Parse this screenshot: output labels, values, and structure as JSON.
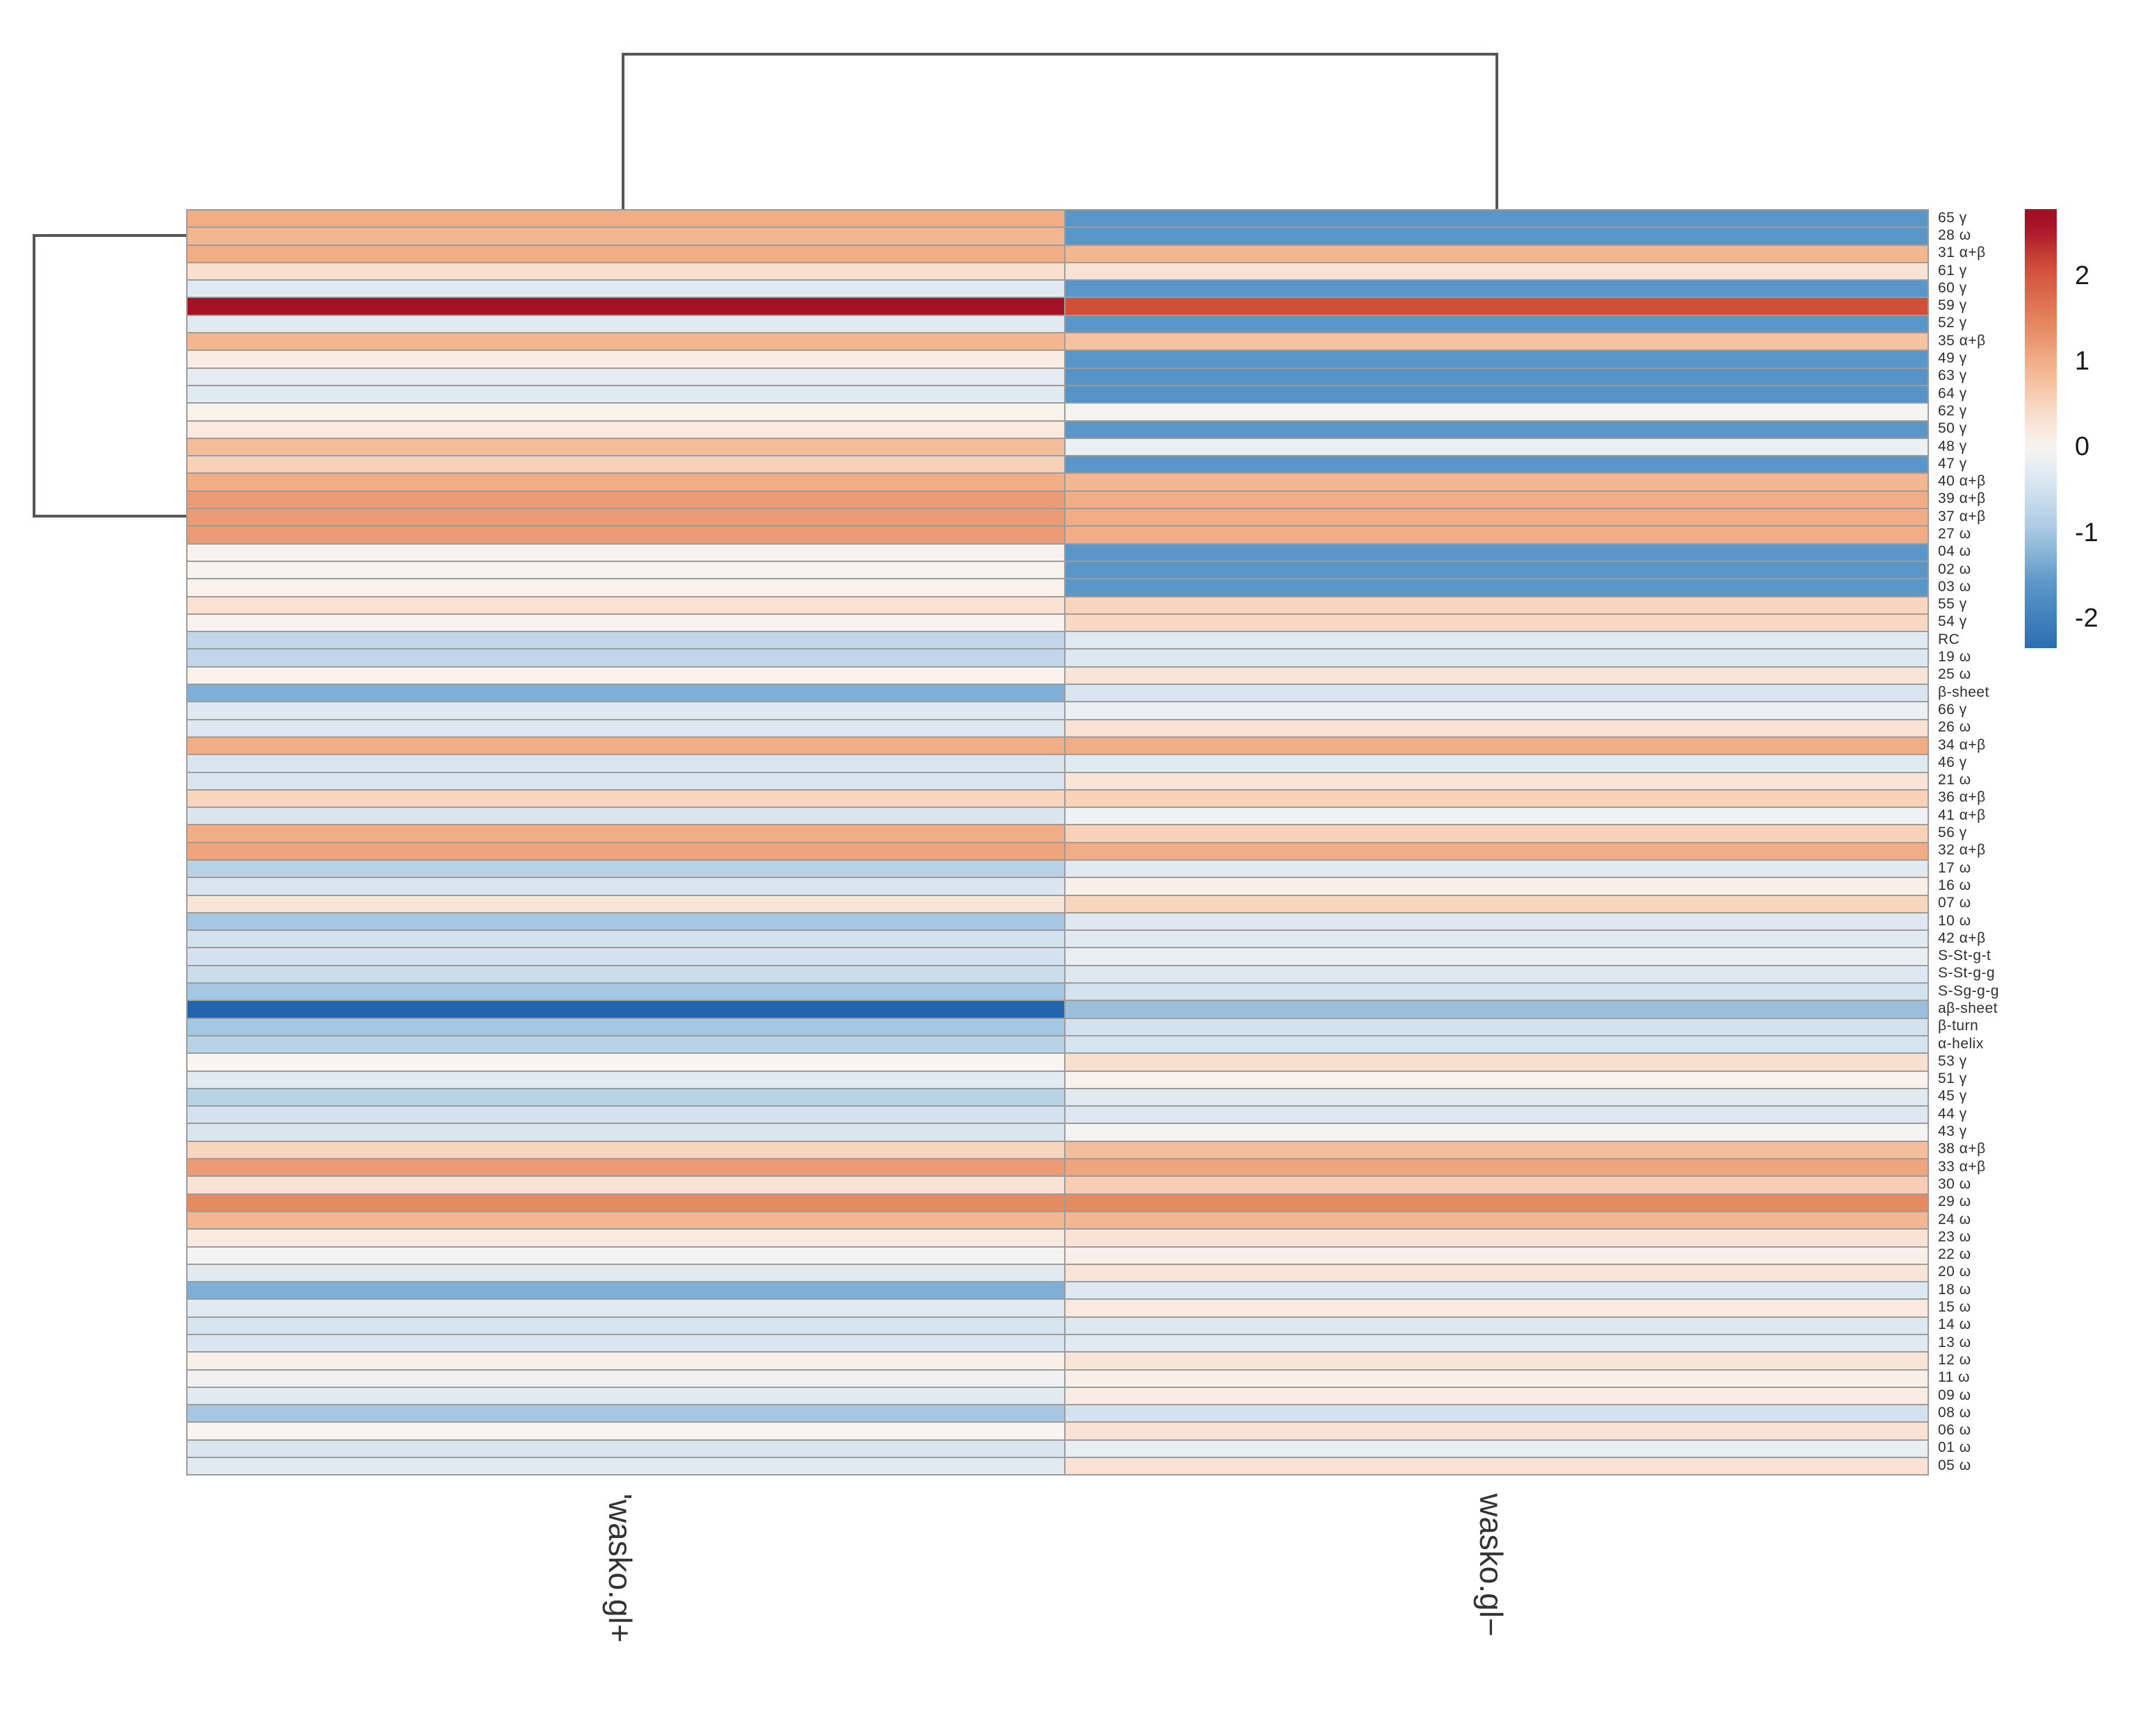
{
  "figure": {
    "background": "#ffffff",
    "grid_line_color": "#9c9c9c",
    "dendrogram_color": "#55565a"
  },
  "chart_data": {
    "type": "heatmap",
    "title": "",
    "columns": [
      "'wasko.gl+",
      "wasko.gl−"
    ],
    "rows": [
      "65 γ",
      "28 ω",
      "31 α+β",
      "61 γ",
      "60 γ",
      "59 γ",
      "52 γ",
      "35 α+β",
      "49 γ",
      "63 γ",
      "64 γ",
      "62 γ",
      "50 γ",
      "48 γ",
      "47 γ",
      "40 α+β",
      "39 α+β",
      "37 α+β",
      "27 ω",
      "04 ω",
      "02 ω",
      "03 ω",
      "55 γ",
      "54 γ",
      "RC",
      "19 ω",
      "25 ω",
      "β-sheet",
      "66 γ",
      "26 ω",
      "34 α+β",
      "46 γ",
      "21 ω",
      "36 α+β",
      "41 α+β",
      "56 γ",
      "32 α+β",
      "17 ω",
      "16 ω",
      "07 ω",
      "10 ω",
      "42 α+β",
      "S-St-g-t",
      "S-St-g-g",
      "S-Sg-g-g",
      "aβ-sheet",
      "β-turn",
      "α-helix",
      "53 γ",
      "51 γ",
      "45 γ",
      "44 γ",
      "43 γ",
      "38 α+β",
      "33 α+β",
      "30 ω",
      "29 ω",
      "24 ω",
      "23 ω",
      "22 ω",
      "20 ω",
      "18 ω",
      "15 ω",
      "14 ω",
      "13 ω",
      "12 ω",
      "11 ω",
      "09 ω",
      "08 ω",
      "06 ω",
      "01 ω",
      "05 ω"
    ],
    "values": [
      [
        1.0,
        -1.6
      ],
      [
        0.9,
        -1.6
      ],
      [
        1.0,
        0.9
      ],
      [
        0.35,
        0.3
      ],
      [
        -0.3,
        -1.6
      ],
      [
        2.6,
        2.1
      ],
      [
        -0.3,
        -1.6
      ],
      [
        0.9,
        0.75
      ],
      [
        0.15,
        -1.6
      ],
      [
        -0.25,
        -1.65
      ],
      [
        -0.3,
        -1.65
      ],
      [
        0.05,
        -0.05
      ],
      [
        0.2,
        -1.6
      ],
      [
        0.8,
        -0.15
      ],
      [
        0.55,
        -1.6
      ],
      [
        1.0,
        0.9
      ],
      [
        1.2,
        1.0
      ],
      [
        1.2,
        1.0
      ],
      [
        1.2,
        1.0
      ],
      [
        0.05,
        -1.6
      ],
      [
        0.05,
        -1.6
      ],
      [
        0.05,
        -1.6
      ],
      [
        0.3,
        0.5
      ],
      [
        0.05,
        0.45
      ],
      [
        -0.7,
        -0.3
      ],
      [
        -0.7,
        -0.35
      ],
      [
        0.05,
        0.25
      ],
      [
        -1.3,
        -0.4
      ],
      [
        -0.35,
        -0.15
      ],
      [
        -0.35,
        0.3
      ],
      [
        1.0,
        1.0
      ],
      [
        -0.4,
        -0.3
      ],
      [
        -0.4,
        0.25
      ],
      [
        0.5,
        0.55
      ],
      [
        -0.4,
        -0.1
      ],
      [
        1.0,
        0.55
      ],
      [
        1.1,
        1.0
      ],
      [
        -0.8,
        -0.3
      ],
      [
        -0.4,
        0.1
      ],
      [
        0.25,
        0.5
      ],
      [
        -1.0,
        -0.35
      ],
      [
        -0.5,
        -0.3
      ],
      [
        -0.5,
        -0.2
      ],
      [
        -0.6,
        -0.35
      ],
      [
        -1.0,
        -0.5
      ],
      [
        -2.5,
        -1.1
      ],
      [
        -1.0,
        -0.5
      ],
      [
        -0.8,
        -0.45
      ],
      [
        0.0,
        0.35
      ],
      [
        -0.3,
        0.05
      ],
      [
        -0.8,
        -0.3
      ],
      [
        -0.5,
        -0.35
      ],
      [
        -0.4,
        -0.05
      ],
      [
        0.5,
        0.8
      ],
      [
        1.2,
        1.1
      ],
      [
        0.3,
        0.6
      ],
      [
        1.4,
        1.4
      ],
      [
        0.9,
        0.9
      ],
      [
        0.2,
        0.3
      ],
      [
        -0.05,
        0.1
      ],
      [
        -0.3,
        0.25
      ],
      [
        -1.3,
        -0.35
      ],
      [
        -0.3,
        0.2
      ],
      [
        -0.45,
        -0.35
      ],
      [
        -0.4,
        -0.3
      ],
      [
        0.1,
        0.25
      ],
      [
        -0.1,
        0.1
      ],
      [
        -0.3,
        0.15
      ],
      [
        -1.0,
        -0.5
      ],
      [
        0.0,
        0.3
      ],
      [
        -0.4,
        -0.2
      ],
      [
        -0.3,
        0.3
      ]
    ],
    "color_scale": {
      "anchors": [
        [
          -2.5,
          "#2166AC"
        ],
        [
          -1.6,
          "#5A96C8"
        ],
        [
          -1.0,
          "#A6C7E1"
        ],
        [
          -0.5,
          "#D3E2EE"
        ],
        [
          -0.15,
          "#EBF0F3"
        ],
        [
          0.0,
          "#F7F4F1"
        ],
        [
          0.15,
          "#F9ECE3"
        ],
        [
          0.5,
          "#F8D5BE"
        ],
        [
          1.0,
          "#F1AE86"
        ],
        [
          1.4,
          "#E68A62"
        ],
        [
          2.1,
          "#D14E39"
        ],
        [
          2.6,
          "#A31126"
        ]
      ],
      "legend_domain": [
        -2.35,
        2.78
      ]
    },
    "legend": {
      "ticks": [
        "2",
        "1",
        "0",
        "-1",
        "-2"
      ],
      "tick_values": [
        2,
        1,
        0,
        -1,
        -2
      ],
      "position": "right"
    },
    "layout_hints": {
      "grid": true,
      "column_labels_rotated": true,
      "dendrograms": [
        "top",
        "left-partial"
      ]
    }
  }
}
